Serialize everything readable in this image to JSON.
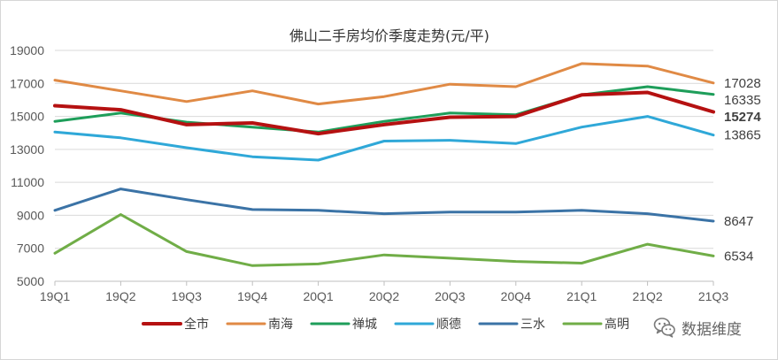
{
  "chart_data": {
    "type": "line",
    "title": "佛山二手房均价季度走势(元/平)",
    "xlabel": "",
    "ylabel": "",
    "categories": [
      "19Q1",
      "19Q2",
      "19Q3",
      "19Q4",
      "20Q1",
      "20Q2",
      "20Q3",
      "20Q4",
      "21Q1",
      "21Q2",
      "21Q3"
    ],
    "y_ticks": [
      5000,
      7000,
      9000,
      11000,
      13000,
      15000,
      17000,
      19000
    ],
    "ylim": [
      5000,
      19000
    ],
    "grid": true,
    "legend_position": "bottom",
    "series": [
      {
        "name": "南海",
        "color": "#e08a45",
        "values": [
          17200,
          16550,
          15900,
          16550,
          15750,
          16200,
          16950,
          16800,
          18200,
          18050,
          17028
        ],
        "end_label": "17028"
      },
      {
        "name": "禅城",
        "color": "#1e9e5a",
        "values": [
          14700,
          15200,
          14650,
          14350,
          14050,
          14700,
          15200,
          15100,
          16300,
          16800,
          16335
        ],
        "end_label": "16335"
      },
      {
        "name": "顺德",
        "color": "#2fa8d8",
        "values": [
          14050,
          13700,
          13100,
          12550,
          12350,
          13500,
          13550,
          13350,
          14350,
          15000,
          13865
        ],
        "end_label": "13865"
      },
      {
        "name": "三水",
        "color": "#3b73a6",
        "values": [
          9300,
          10600,
          9950,
          9350,
          9300,
          9100,
          9200,
          9200,
          9300,
          9100,
          8647
        ],
        "end_label": "8647"
      },
      {
        "name": "高明",
        "color": "#70ad47",
        "values": [
          6700,
          9050,
          6800,
          5950,
          6050,
          6600,
          6400,
          6200,
          6100,
          7250,
          6534
        ],
        "end_label": "6534"
      },
      {
        "name": "全市",
        "color": "#b51111",
        "values": [
          15650,
          15400,
          14500,
          14600,
          13950,
          14500,
          14950,
          15000,
          16300,
          16450,
          15274
        ],
        "end_label": "15274",
        "bold": true
      }
    ],
    "legend_order": [
      "全市",
      "南海",
      "禅城",
      "顺德",
      "三水",
      "高明"
    ]
  },
  "watermark": {
    "text": "数据维度",
    "icon": "wechat-icon"
  }
}
